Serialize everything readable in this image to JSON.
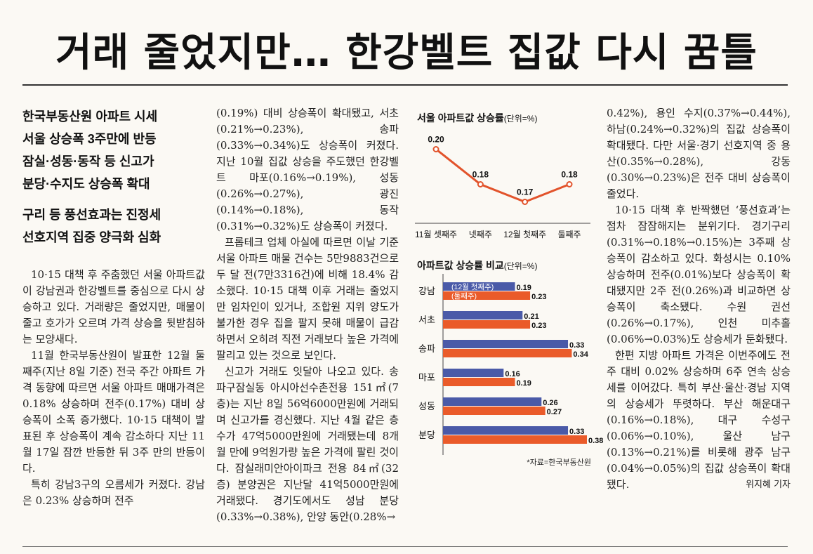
{
  "headline": "거래 줄었지만… 한강벨트 집값 다시 꿈틀",
  "subheads": [
    "한국부동산원 아파트 시세",
    "서울 상승폭 3주만에 반등",
    "잠실·성동·동작 등 신고가",
    "분당·수지도 상승폭 확대"
  ],
  "subheads2": [
    "구리 등 풍선효과는 진정세",
    "선호지역 집중 양극화 심화"
  ],
  "body": {
    "col1": [
      "10·15 대책 후 주춤했던 서울 아파트값이 강남권과 한강벨트를 중심으로 다시 상승하고 있다. 거래량은 줄었지만, 매물이 줄고 호가가 오르며 가격 상승을 뒷받침하는 모양새다.",
      "11월 한국부동산원이 발표한 12월 둘째주(지난 8일 기준) 전국 주간 아파트 가격 동향에 따르면 서울 아파트 매매가격은 0.18% 상승하며 전주(0.17%) 대비 상승폭이 소폭 증가했다. 10·15 대책이 발표된 후 상승폭이 계속 감소하다 지난 11월 17일 잠깐 반등한 뒤 3주 만의 반등이다.",
      "특히 강남3구의 오름세가 커졌다. 강남은 0.23% 상승하며 전주"
    ],
    "col2": [
      "(0.19%) 대비 상승폭이 확대됐고, 서초(0.21%→0.23%), 송파(0.33%→0.34%)도 상승폭이 커졌다. 지난 10월 집값 상승을 주도했던 한강벨트 마포(0.16%→0.19%), 성동(0.26%→0.27%), 광진(0.14%→0.18%), 동작(0.31%→0.32%)도 상승폭이 커졌다.",
      "프롭테크 업체 아실에 따르면 이날 기준 서울 아파트 매물 건수는 5만9883건으로 두 달 전(7만3316건)에 비해 18.4% 감소했다. 10·15 대책 이후 거래는 줄었지만 임차인이 있거나, 조합원 지위 양도가 불가한 경우 집을 팔지 못해 매물이 급감하면서 오히려 직전 거래보다 높은 가격에 팔리고 있는 것으로 보인다.",
      "신고가 거래도 잇달아 나오고 있다. 송파구잠실동 아시아선수촌전용 151㎡(7층)는 지난 8일 56억6000만원에 거래되며 신고가를 경신했다. 지난 4월 같은 층수가 47억5000만원에 거래됐는데 8개월 만에 9억원가량 높은 가격에 팔린 것이다. 잠실래미안아이파크 전용 84㎡(32층) 분양권은 지난달 41억5000만원에 거래됐다. 경기도에서도 성남 분당(0.33%→0.38%), 안양 동안(0.28%→"
    ],
    "col4": [
      "0.42%), 용인 수지(0.37%→0.44%), 하남(0.24%→0.32%)의 집값 상승폭이 확대됐다. 다만 서울·경기 선호지역 중 용산(0.35%→0.28%), 강동(0.30%→0.23%)은 전주 대비 상승폭이 줄었다.",
      "10·15 대책 후 반짝했던 ‘풍선효과’는 점차 잠잠해지는 분위기다. 경기구리(0.31%→0.18%→0.15%)는 3주째 상승폭이 감소하고 있다. 화성시는 0.10% 상승하며 전주(0.01%)보다 상승폭이 확대됐지만 2주 전(0.26%)과 비교하면 상승폭이 축소됐다. 수원 권선(0.26%→0.17%), 인천 미추홀(0.06%→0.03%)도 상승세가 둔화됐다.",
      "한편 지방 아파트 가격은 이번주에도 전주 대비 0.02% 상승하며 6주 연속 상승세를 이어갔다. 특히 부산·울산·경남 지역의 상승세가 뚜렷하다. 부산 해운대구(0.16%→0.18%), 대구 수성구(0.06%→0.10%), 울산 남구(0.13%→0.21%)를 비롯해 광주 남구(0.04%→0.05%)의 집값 상승폭이 확대됐다."
    ],
    "byline": "위지혜 기자"
  },
  "colors": {
    "line": "#e2532b",
    "bar_first": "#4a5aa8",
    "bar_second": "#ea5b2a",
    "text": "#1d1d1d",
    "bg": "#fbf9f4"
  },
  "chart_data": [
    {
      "type": "line",
      "title": "서울 아파트값 상승률",
      "unit": "(단위=%)",
      "categories": [
        "11월 셋째주",
        "넷째주",
        "12월 첫째주",
        "둘째주"
      ],
      "values": [
        0.2,
        0.18,
        0.17,
        0.18
      ],
      "value_labels": [
        "0.20",
        "0.18",
        "0.17",
        "0.18"
      ],
      "ylim": [
        0.165,
        0.205
      ]
    },
    {
      "type": "bar",
      "orientation": "horizontal",
      "title": "아파트값 상승률 비교",
      "unit": "(단위=%)",
      "categories": [
        "강남",
        "서초",
        "송파",
        "마포",
        "성동",
        "분당"
      ],
      "series": [
        {
          "name": "(12월 첫째주)",
          "values": [
            0.19,
            0.21,
            0.33,
            0.16,
            0.26,
            0.33
          ],
          "labels": [
            "0.19",
            "0.21",
            "0.33",
            "0.16",
            "0.26",
            "0.33"
          ]
        },
        {
          "name": "(둘째주)",
          "values": [
            0.23,
            0.23,
            0.34,
            0.19,
            0.27,
            0.38
          ],
          "labels": [
            "0.23",
            "0.23",
            "0.34",
            "0.19",
            "0.27",
            "0.38"
          ]
        }
      ],
      "xlim": [
        0,
        0.38
      ],
      "source": "*자료=한국부동산원"
    }
  ]
}
